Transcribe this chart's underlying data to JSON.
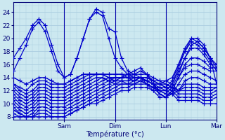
{
  "xlabel": "Température (°c)",
  "xlim": [
    0,
    96
  ],
  "ylim": [
    7.5,
    25.5
  ],
  "yticks": [
    8,
    10,
    12,
    14,
    16,
    18,
    20,
    22,
    24
  ],
  "xtick_positions": [
    24,
    48,
    72,
    96
  ],
  "xtick_labels": [
    "Sam",
    "Dim",
    "Lun",
    "Mar"
  ],
  "bg_color": "#cce8f0",
  "grid_major_color": "#aacce0",
  "grid_minor_color": "#aacce0",
  "line_color": "#0000cc",
  "marker": "+",
  "markersize": 4,
  "linewidth": 0.9,
  "series": [
    [
      0,
      17,
      3,
      18.5,
      6,
      20,
      9,
      22,
      12,
      23,
      15,
      22,
      18,
      19,
      21,
      16,
      24,
      14,
      27,
      14.5,
      30,
      17,
      33,
      20,
      36,
      23,
      39,
      24.5,
      42,
      24,
      45,
      21.5,
      48,
      21,
      51,
      17,
      54,
      15,
      57,
      14.5,
      60,
      14,
      63,
      13.5,
      66,
      13,
      69,
      13,
      72,
      13.5,
      75,
      14,
      78,
      16,
      81,
      18,
      84,
      20,
      87,
      20,
      90,
      19,
      93,
      17,
      96,
      13
    ],
    [
      0,
      15,
      3,
      17,
      6,
      19,
      9,
      21.5,
      12,
      22.5,
      15,
      21,
      18,
      18,
      21,
      15,
      24,
      14,
      27,
      14.5,
      30,
      17,
      33,
      20,
      36,
      23,
      39,
      24,
      42,
      23.5,
      45,
      20,
      48,
      17,
      51,
      15.5,
      54,
      14.5,
      57,
      14,
      60,
      14,
      63,
      13,
      66,
      12.5,
      69,
      12,
      72,
      12,
      75,
      13,
      78,
      15,
      81,
      17,
      84,
      19,
      87,
      19.5,
      90,
      18.5,
      93,
      17,
      96,
      16
    ],
    [
      0,
      14,
      3,
      13.5,
      6,
      13,
      9,
      13.5,
      12,
      14,
      15,
      14,
      18,
      13.5,
      21,
      13,
      24,
      13,
      27,
      13.5,
      30,
      14,
      33,
      14.5,
      36,
      14.5,
      39,
      14.5,
      42,
      14.5,
      45,
      14.5,
      48,
      14.5,
      51,
      14.5,
      54,
      14.5,
      57,
      14,
      60,
      14,
      63,
      14,
      66,
      13.5,
      69,
      13,
      72,
      12.5,
      75,
      13.5,
      78,
      16,
      81,
      18.5,
      84,
      20,
      87,
      19.5,
      90,
      18.5,
      93,
      17,
      96,
      15.5
    ],
    [
      0,
      13,
      3,
      12.5,
      6,
      12,
      9,
      13,
      12,
      13.5,
      15,
      13.5,
      18,
      13,
      21,
      13,
      24,
      13,
      27,
      13.5,
      30,
      14,
      33,
      14.5,
      36,
      14.5,
      39,
      14.5,
      42,
      14.5,
      45,
      14.5,
      48,
      14.5,
      51,
      14.5,
      54,
      14,
      57,
      14,
      60,
      14,
      63,
      13.5,
      66,
      13,
      69,
      12.5,
      72,
      12,
      75,
      13,
      78,
      15.5,
      81,
      18,
      84,
      19.5,
      87,
      19,
      90,
      18,
      93,
      16.5,
      96,
      15
    ],
    [
      0,
      13,
      3,
      12,
      6,
      11.5,
      9,
      12,
      12,
      13,
      15,
      13,
      18,
      12.5,
      21,
      12.5,
      24,
      12.5,
      27,
      13,
      30,
      13.5,
      33,
      14,
      36,
      14.5,
      39,
      14.5,
      42,
      14.5,
      45,
      14,
      48,
      14,
      51,
      14,
      54,
      14,
      57,
      13.5,
      60,
      14,
      63,
      13.5,
      66,
      13,
      69,
      12,
      72,
      11.5,
      75,
      12.5,
      78,
      14.5,
      81,
      17,
      84,
      18.5,
      87,
      18.5,
      90,
      17.5,
      93,
      16,
      96,
      16
    ],
    [
      0,
      12.5,
      3,
      11.5,
      6,
      11,
      9,
      11.5,
      12,
      12.5,
      15,
      12.5,
      18,
      12,
      21,
      12,
      24,
      12,
      27,
      12.5,
      30,
      13,
      33,
      13.5,
      36,
      14,
      39,
      14.5,
      42,
      14.5,
      45,
      14,
      48,
      13.5,
      51,
      13.5,
      54,
      13.5,
      57,
      13.5,
      60,
      14,
      63,
      13.5,
      66,
      13,
      69,
      11.5,
      72,
      11,
      75,
      12,
      78,
      14,
      81,
      16,
      84,
      17,
      87,
      17,
      90,
      16.5,
      93,
      15.5,
      96,
      15.5
    ],
    [
      0,
      12,
      3,
      11,
      6,
      10.5,
      9,
      11,
      12,
      12,
      15,
      12,
      18,
      11.5,
      21,
      11.5,
      24,
      11.5,
      27,
      12,
      30,
      12.5,
      33,
      13,
      36,
      13.5,
      39,
      14,
      42,
      14,
      45,
      13.5,
      48,
      13.5,
      51,
      13.5,
      54,
      13,
      57,
      13,
      60,
      13.5,
      63,
      13,
      66,
      12.5,
      69,
      11.5,
      72,
      11,
      75,
      12,
      78,
      14,
      81,
      15.5,
      84,
      16,
      87,
      16,
      90,
      15.5,
      93,
      15,
      96,
      15
    ],
    [
      0,
      11.5,
      3,
      10.5,
      6,
      10,
      9,
      10.5,
      12,
      11.5,
      15,
      11.5,
      18,
      11,
      21,
      11,
      24,
      11,
      27,
      11.5,
      30,
      12,
      33,
      12.5,
      36,
      13,
      39,
      13.5,
      42,
      14,
      45,
      13.5,
      48,
      13,
      51,
      13,
      54,
      13,
      57,
      13,
      60,
      13.5,
      63,
      13,
      66,
      12,
      69,
      11,
      72,
      11,
      75,
      11.5,
      78,
      13,
      81,
      14.5,
      84,
      15,
      87,
      15,
      90,
      14.5,
      93,
      14,
      96,
      13.5
    ],
    [
      0,
      11,
      3,
      10,
      6,
      9.5,
      9,
      10,
      12,
      11,
      15,
      11,
      18,
      10.5,
      21,
      10.5,
      24,
      10.5,
      27,
      11,
      30,
      11.5,
      33,
      12,
      36,
      12.5,
      39,
      13,
      42,
      13.5,
      45,
      14,
      48,
      14,
      51,
      14,
      54,
      14.5,
      57,
      15,
      60,
      15.5,
      63,
      14.5,
      66,
      13,
      69,
      12,
      72,
      11.5,
      75,
      11.5,
      78,
      12,
      81,
      13.5,
      84,
      14,
      87,
      14,
      90,
      13.5,
      93,
      13,
      96,
      13
    ],
    [
      0,
      10.5,
      3,
      9.5,
      6,
      9,
      9,
      9.5,
      12,
      10.5,
      15,
      10.5,
      18,
      10,
      21,
      10,
      24,
      10,
      27,
      10.5,
      30,
      11,
      33,
      11.5,
      36,
      12,
      39,
      12.5,
      42,
      13,
      45,
      13.5,
      48,
      14,
      51,
      14,
      54,
      14.5,
      57,
      14.5,
      60,
      15,
      63,
      14.5,
      66,
      13.5,
      69,
      13,
      72,
      12.5,
      75,
      12.5,
      78,
      12,
      81,
      13,
      84,
      13,
      87,
      13,
      90,
      12.5,
      93,
      12.5,
      96,
      12.5
    ],
    [
      0,
      10,
      3,
      9,
      6,
      8.5,
      9,
      9,
      12,
      10,
      15,
      10,
      18,
      9.5,
      21,
      9.5,
      24,
      9.5,
      27,
      10,
      30,
      10.5,
      33,
      11,
      36,
      11.5,
      39,
      12,
      42,
      12.5,
      45,
      13,
      48,
      13.5,
      51,
      14,
      54,
      14,
      57,
      14.5,
      60,
      14.5,
      63,
      14.5,
      66,
      14,
      69,
      13.5,
      72,
      13,
      75,
      12.5,
      78,
      12,
      81,
      12.5,
      84,
      12.5,
      87,
      12.5,
      90,
      12,
      93,
      12,
      96,
      12.5
    ],
    [
      0,
      9.5,
      3,
      8.5,
      6,
      8,
      9,
      8.5,
      12,
      9.5,
      15,
      9.5,
      18,
      9,
      21,
      9,
      24,
      9,
      27,
      9.5,
      30,
      10,
      33,
      10.5,
      36,
      11,
      39,
      11.5,
      42,
      12,
      45,
      12.5,
      48,
      13,
      51,
      13.5,
      54,
      13.5,
      57,
      14,
      60,
      14,
      63,
      14,
      66,
      13.5,
      69,
      13.5,
      72,
      13.5,
      75,
      13,
      78,
      12,
      81,
      12,
      84,
      12,
      87,
      12,
      90,
      11.5,
      93,
      11.5,
      96,
      12
    ],
    [
      0,
      9,
      3,
      8.5,
      6,
      8,
      9,
      8,
      12,
      9,
      15,
      9,
      18,
      8.5,
      21,
      8.5,
      24,
      8.5,
      27,
      9,
      30,
      9.5,
      33,
      10,
      36,
      10.5,
      39,
      11,
      42,
      11.5,
      45,
      12,
      48,
      12.5,
      51,
      13,
      54,
      13,
      57,
      13.5,
      60,
      13.5,
      63,
      13.5,
      66,
      13,
      69,
      13,
      72,
      13,
      75,
      12.5,
      78,
      11.5,
      81,
      11.5,
      84,
      11.5,
      87,
      11.5,
      90,
      11,
      93,
      11,
      96,
      11.5
    ],
    [
      0,
      8.5,
      3,
      8,
      6,
      8,
      9,
      8,
      12,
      8.5,
      15,
      8.5,
      18,
      8,
      21,
      8,
      24,
      8,
      27,
      8.5,
      30,
      9,
      33,
      9.5,
      36,
      10,
      39,
      10.5,
      42,
      11,
      45,
      11.5,
      48,
      12,
      51,
      12.5,
      54,
      12.5,
      57,
      13,
      60,
      13,
      63,
      13,
      66,
      12.5,
      69,
      12.5,
      72,
      12.5,
      75,
      12,
      78,
      11,
      81,
      11,
      84,
      11,
      87,
      11,
      90,
      10.5,
      93,
      10.5,
      96,
      11
    ],
    [
      0,
      8,
      3,
      8,
      6,
      8,
      9,
      8,
      12,
      8,
      15,
      8,
      18,
      8,
      21,
      8,
      24,
      8,
      27,
      8.5,
      30,
      9,
      33,
      9.5,
      36,
      10,
      39,
      10,
      42,
      10.5,
      45,
      11,
      48,
      11.5,
      51,
      12,
      54,
      12,
      57,
      12.5,
      60,
      12.5,
      63,
      12.5,
      66,
      12,
      69,
      12,
      72,
      12,
      75,
      11.5,
      78,
      10.5,
      81,
      10.5,
      84,
      10.5,
      87,
      10.5,
      90,
      10,
      93,
      10,
      96,
      10
    ]
  ]
}
